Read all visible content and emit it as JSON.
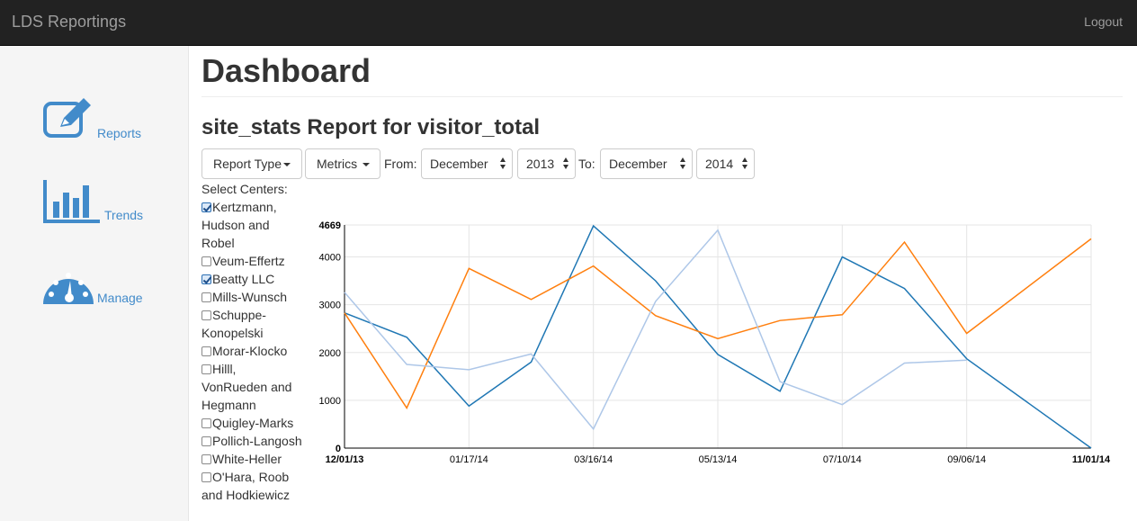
{
  "navbar": {
    "brand": "LDS Reportings",
    "logout": "Logout"
  },
  "sidebar": {
    "items": [
      {
        "label": "Reports",
        "icon": "edit-icon"
      },
      {
        "label": "Trends",
        "icon": "bar-chart-icon"
      },
      {
        "label": "Manage",
        "icon": "dashboard-gauge-icon"
      }
    ]
  },
  "page": {
    "title": "Dashboard",
    "subtitle": "site_stats Report for visitor_total"
  },
  "controls": {
    "report_type": "Report Type",
    "metrics": "Metrics",
    "from_label": "From:",
    "from_month": "December",
    "from_year": "2013",
    "to_label": "To:",
    "to_month": "December",
    "to_year": "2014"
  },
  "centers": {
    "label": "Select Centers:",
    "items": [
      {
        "name": "Kertzmann, Hudson and Robel",
        "checked": true
      },
      {
        "name": "Veum-Effertz",
        "checked": false
      },
      {
        "name": "Beatty LLC",
        "checked": true
      },
      {
        "name": "Mills-Wunsch",
        "checked": false
      },
      {
        "name": "Schuppe-Konopelski",
        "checked": false
      },
      {
        "name": "Morar-Klocko",
        "checked": false
      },
      {
        "name": "Hilll, VonRueden and Hegmann",
        "checked": false
      },
      {
        "name": "Quigley-Marks",
        "checked": false
      },
      {
        "name": "Pollich-Langosh",
        "checked": false
      },
      {
        "name": "White-Heller",
        "checked": false
      },
      {
        "name": "O'Hara, Roob and Hodkiewicz",
        "checked": false
      }
    ]
  },
  "colors": {
    "accent": "#428bca",
    "series": [
      "#1f77b4",
      "#ff7f0e",
      "#aec7e8"
    ]
  },
  "chart_data": {
    "type": "line",
    "x": [
      "12/01/13",
      "12/31/13",
      "01/30/14",
      "03/01/14",
      "03/31/14",
      "04/30/14",
      "05/30/14",
      "06/29/14",
      "07/29/14",
      "08/28/14",
      "09/27/14",
      "10/27/14",
      "11/01/14"
    ],
    "x_ticks": [
      "12/01/13",
      "01/17/14",
      "03/16/14",
      "05/13/14",
      "07/10/14",
      "09/06/14",
      "11/01/14"
    ],
    "y_ticks": [
      0,
      1000,
      2000,
      3000,
      4000,
      4669
    ],
    "ylim": [
      0,
      4669
    ],
    "grid": true,
    "series": [
      {
        "values": [
          2830,
          2320,
          880,
          1800,
          4650,
          3500,
          1960,
          1190,
          4000,
          3340,
          1870,
          null,
          0
        ]
      },
      {
        "values": [
          2830,
          840,
          3760,
          3110,
          3810,
          2770,
          2290,
          2670,
          2790,
          4310,
          2400,
          null,
          4380
        ]
      },
      {
        "values": [
          3260,
          1750,
          1640,
          1970,
          400,
          3070,
          4560,
          1390,
          910,
          1780,
          1840,
          null,
          null
        ]
      }
    ]
  }
}
